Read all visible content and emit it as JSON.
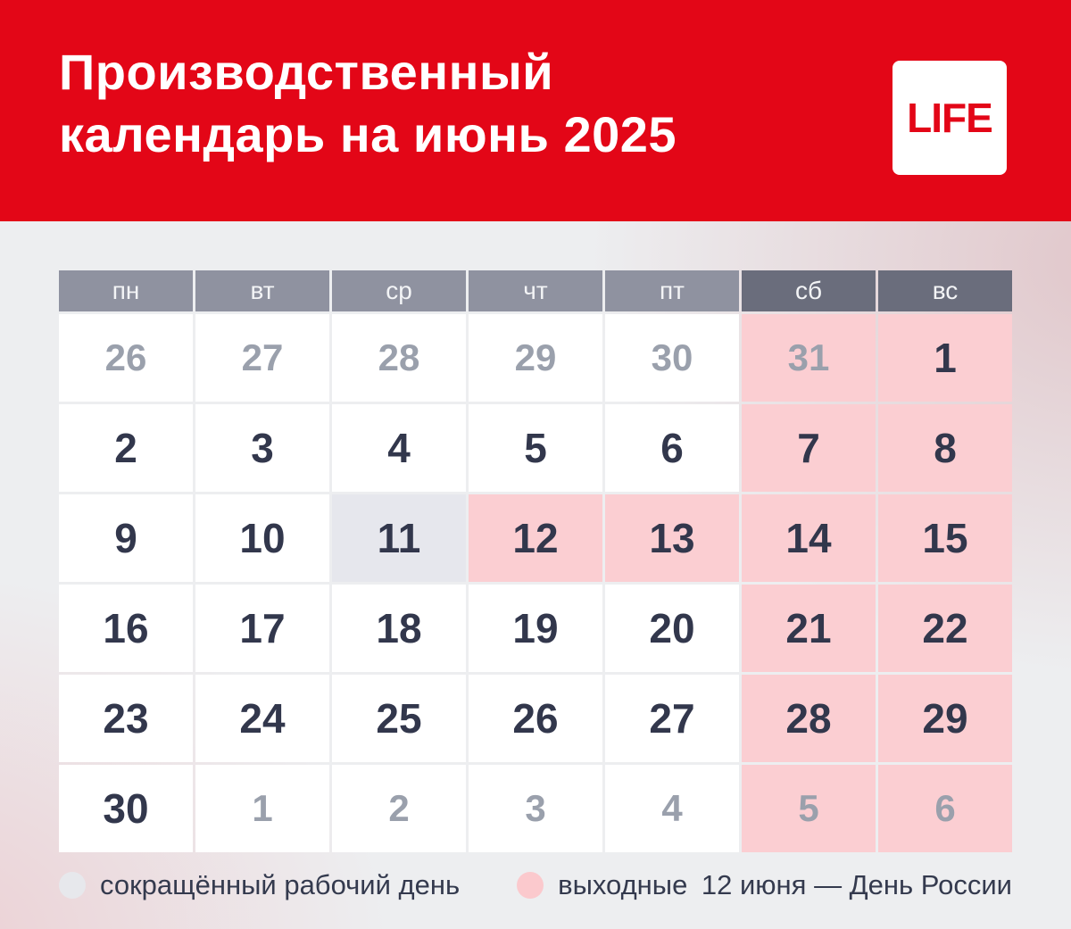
{
  "header": {
    "title_line1": "Производственный",
    "title_line2": "календарь на июнь 2025",
    "logo_text": "LIFE"
  },
  "calendar": {
    "weekdays": [
      {
        "label": "пн",
        "weekend": false
      },
      {
        "label": "вт",
        "weekend": false
      },
      {
        "label": "ср",
        "weekend": false
      },
      {
        "label": "чт",
        "weekend": false
      },
      {
        "label": "пт",
        "weekend": false
      },
      {
        "label": "сб",
        "weekend": true
      },
      {
        "label": "вс",
        "weekend": true
      }
    ],
    "weeks": [
      [
        {
          "day": "26",
          "type": "other-month"
        },
        {
          "day": "27",
          "type": "other-month"
        },
        {
          "day": "28",
          "type": "other-month"
        },
        {
          "day": "29",
          "type": "other-month"
        },
        {
          "day": "30",
          "type": "other-month"
        },
        {
          "day": "31",
          "type": "other-month-weekend"
        },
        {
          "day": "1",
          "type": "weekend"
        }
      ],
      [
        {
          "day": "2",
          "type": "workday"
        },
        {
          "day": "3",
          "type": "workday"
        },
        {
          "day": "4",
          "type": "workday"
        },
        {
          "day": "5",
          "type": "workday"
        },
        {
          "day": "6",
          "type": "workday"
        },
        {
          "day": "7",
          "type": "weekend"
        },
        {
          "day": "8",
          "type": "weekend"
        }
      ],
      [
        {
          "day": "9",
          "type": "workday"
        },
        {
          "day": "10",
          "type": "workday"
        },
        {
          "day": "11",
          "type": "short-day"
        },
        {
          "day": "12",
          "type": "holiday"
        },
        {
          "day": "13",
          "type": "holiday"
        },
        {
          "day": "14",
          "type": "weekend"
        },
        {
          "day": "15",
          "type": "weekend"
        }
      ],
      [
        {
          "day": "16",
          "type": "workday"
        },
        {
          "day": "17",
          "type": "workday"
        },
        {
          "day": "18",
          "type": "workday"
        },
        {
          "day": "19",
          "type": "workday"
        },
        {
          "day": "20",
          "type": "workday"
        },
        {
          "day": "21",
          "type": "weekend"
        },
        {
          "day": "22",
          "type": "weekend"
        }
      ],
      [
        {
          "day": "23",
          "type": "workday"
        },
        {
          "day": "24",
          "type": "workday"
        },
        {
          "day": "25",
          "type": "workday"
        },
        {
          "day": "26",
          "type": "workday"
        },
        {
          "day": "27",
          "type": "workday"
        },
        {
          "day": "28",
          "type": "weekend"
        },
        {
          "day": "29",
          "type": "weekend"
        }
      ],
      [
        {
          "day": "30",
          "type": "workday"
        },
        {
          "day": "1",
          "type": "other-month"
        },
        {
          "day": "2",
          "type": "other-month"
        },
        {
          "day": "3",
          "type": "other-month"
        },
        {
          "day": "4",
          "type": "other-month"
        },
        {
          "day": "5",
          "type": "other-month-weekend"
        },
        {
          "day": "6",
          "type": "other-month-weekend"
        }
      ]
    ]
  },
  "legend": {
    "short_day_label": "сокращённый рабочий день",
    "weekend_label": "выходные",
    "holiday_note": "12 июня — День России"
  },
  "colors": {
    "brand_red": "#e30617",
    "weekend_cell": "#fbced2",
    "short_day_cell": "#e6e7ed",
    "weekday_header_bg": "#8f92a0",
    "weekend_header_bg": "#6a6d7c",
    "day_text": "#32374c",
    "muted_day_text": "#9aa0ac",
    "legend_text": "#343a4e"
  }
}
